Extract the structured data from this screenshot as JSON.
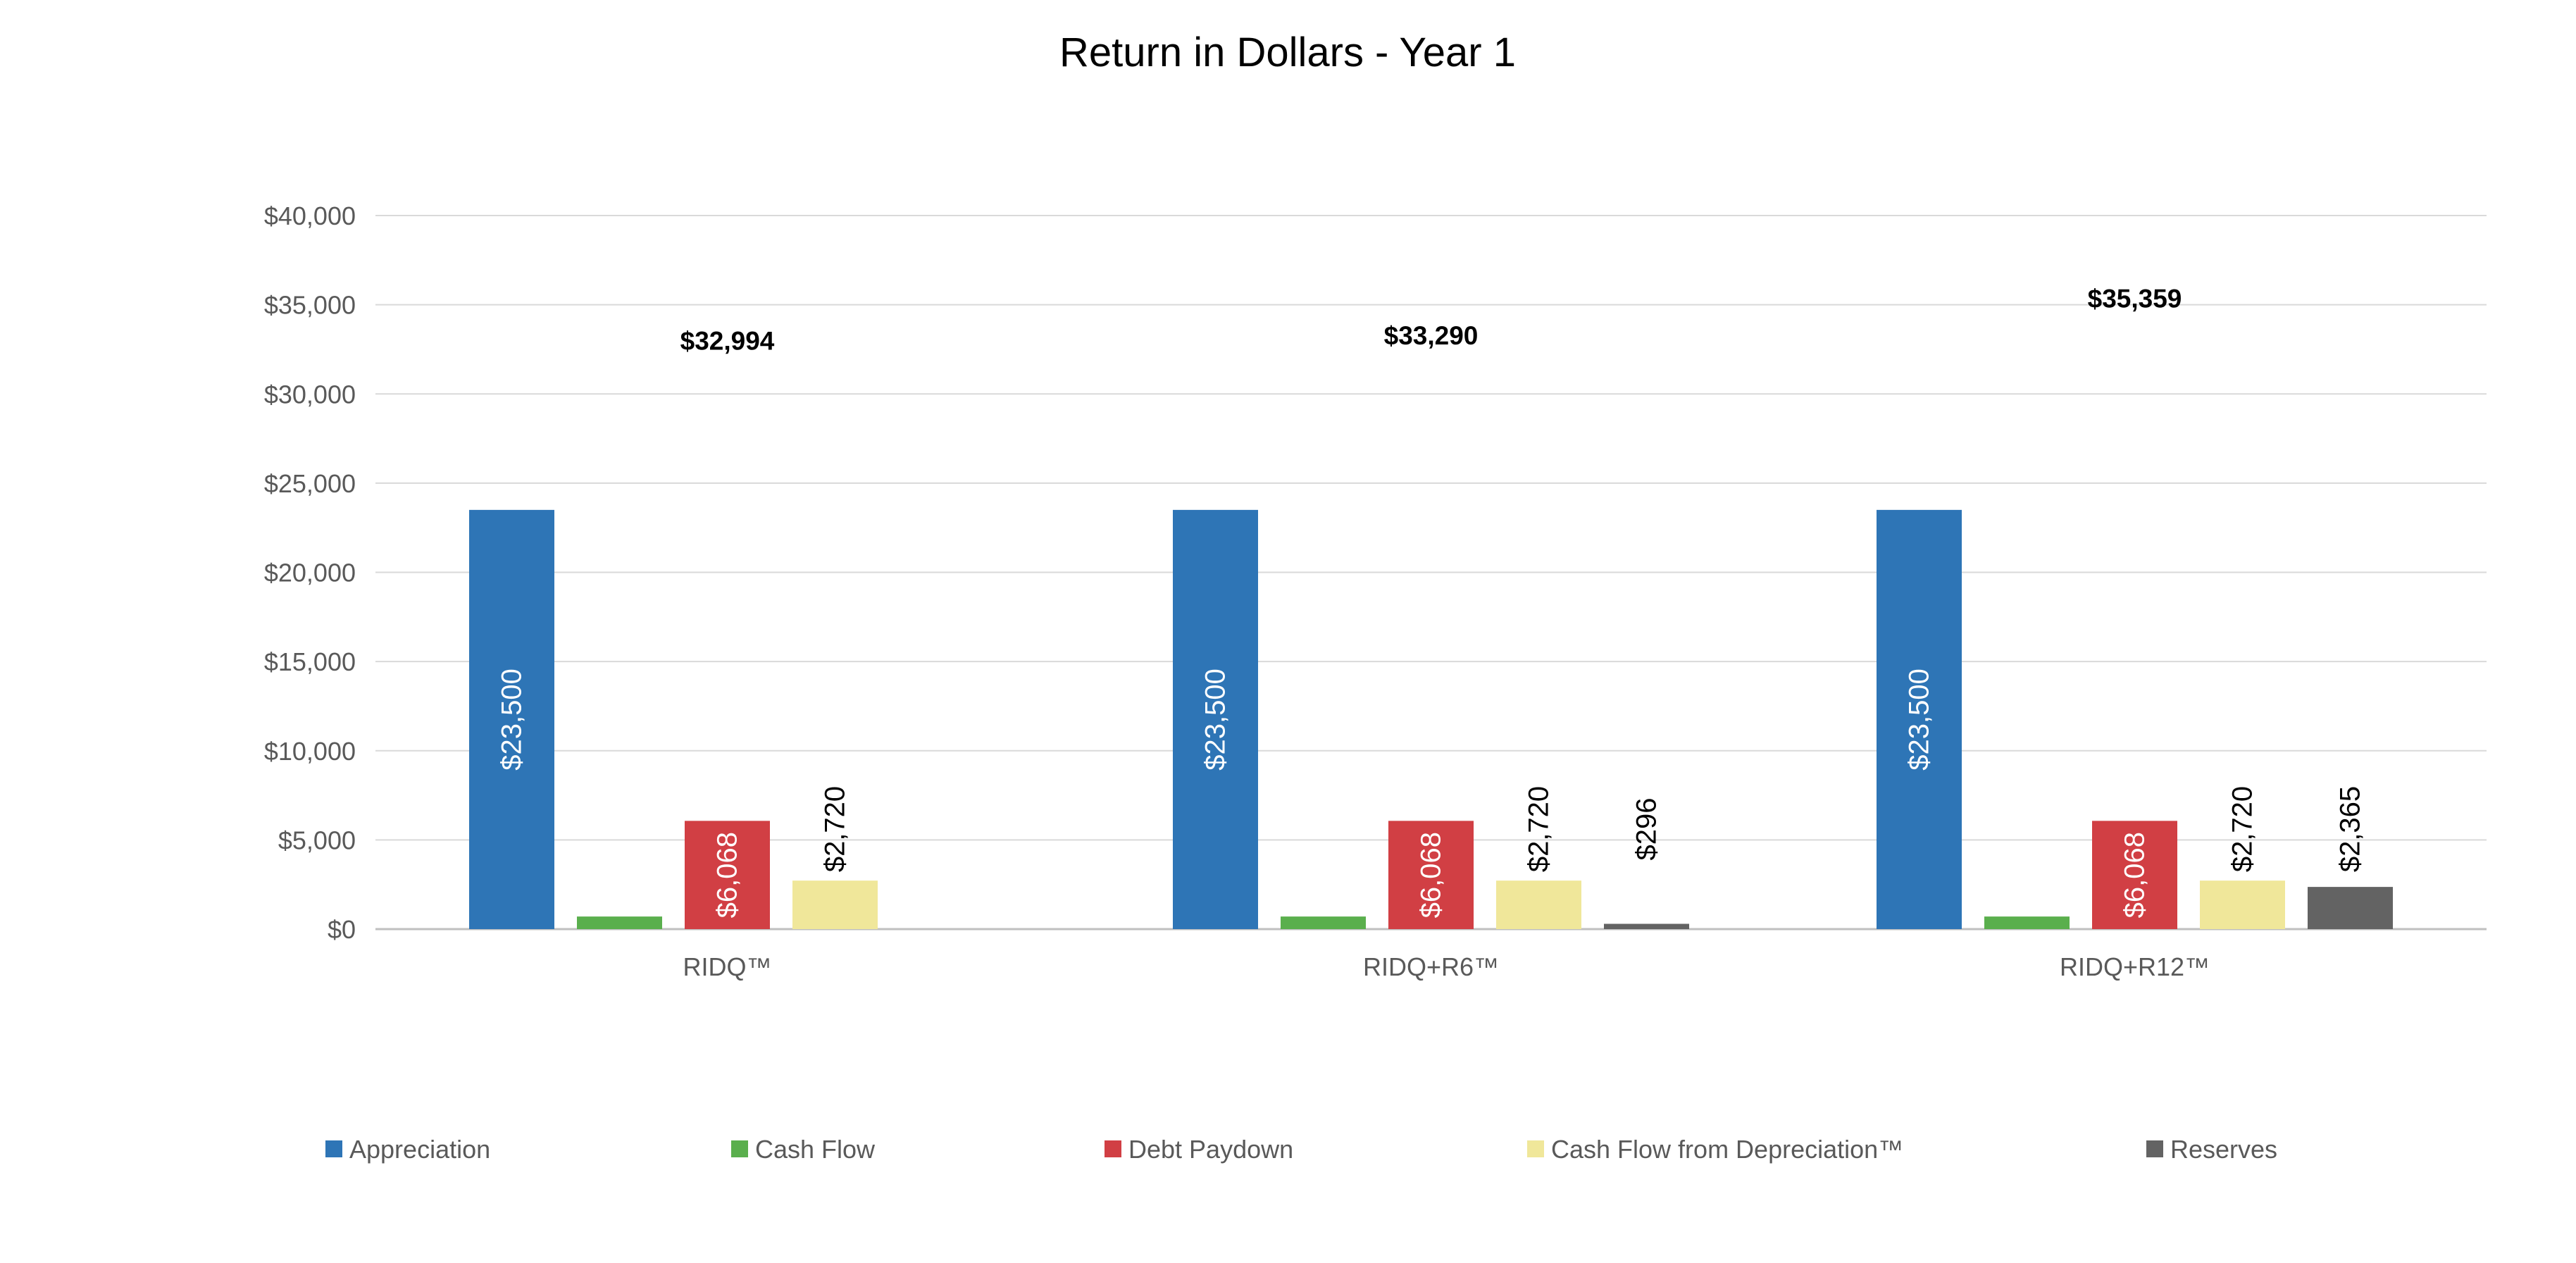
{
  "chart_data": {
    "type": "bar",
    "title": "Return in Dollars - Year 1",
    "xlabel": "",
    "ylabel": "",
    "ylim": [
      0,
      40000
    ],
    "y_ticks": [
      0,
      5000,
      10000,
      15000,
      20000,
      25000,
      30000,
      35000,
      40000
    ],
    "y_tick_labels": [
      "$0",
      "$5,000",
      "$10,000",
      "$15,000",
      "$20,000",
      "$25,000",
      "$30,000",
      "$35,000",
      "$40,000"
    ],
    "grid": true,
    "legend_position": "bottom",
    "categories": [
      "RIDQ™",
      "RIDQ+R6™",
      "RIDQ+R12™"
    ],
    "totals": [
      32994,
      33290,
      35359
    ],
    "total_labels": [
      "$32,994",
      "$33,290",
      "$35,359"
    ],
    "series": [
      {
        "name": "Appreciation",
        "color": "#2E75B6",
        "values": [
          23500,
          23500,
          23500
        ],
        "labels": [
          "$23,500",
          "$23,500",
          "$23,500"
        ],
        "label_color": "#ffffff"
      },
      {
        "name": "Cash Flow",
        "color": "#5AAF4D",
        "values": [
          706,
          706,
          706
        ],
        "labels": [
          "",
          "",
          ""
        ],
        "label_color": "#000000"
      },
      {
        "name": "Debt Paydown",
        "color": "#D13F44",
        "values": [
          6068,
          6068,
          6068
        ],
        "labels": [
          "$6,068",
          "$6,068",
          "$6,068"
        ],
        "label_color": "#ffffff"
      },
      {
        "name": "Cash Flow from Depreciation™",
        "color": "#F0E79A",
        "values": [
          2720,
          2720,
          2720
        ],
        "labels": [
          "$2,720",
          "$2,720",
          "$2,720"
        ],
        "label_color": "#000000"
      },
      {
        "name": "Reserves",
        "color": "#636363",
        "values": [
          0,
          296,
          2365
        ],
        "labels": [
          "",
          "$296",
          "$2,365"
        ],
        "label_color": "#000000"
      }
    ]
  }
}
